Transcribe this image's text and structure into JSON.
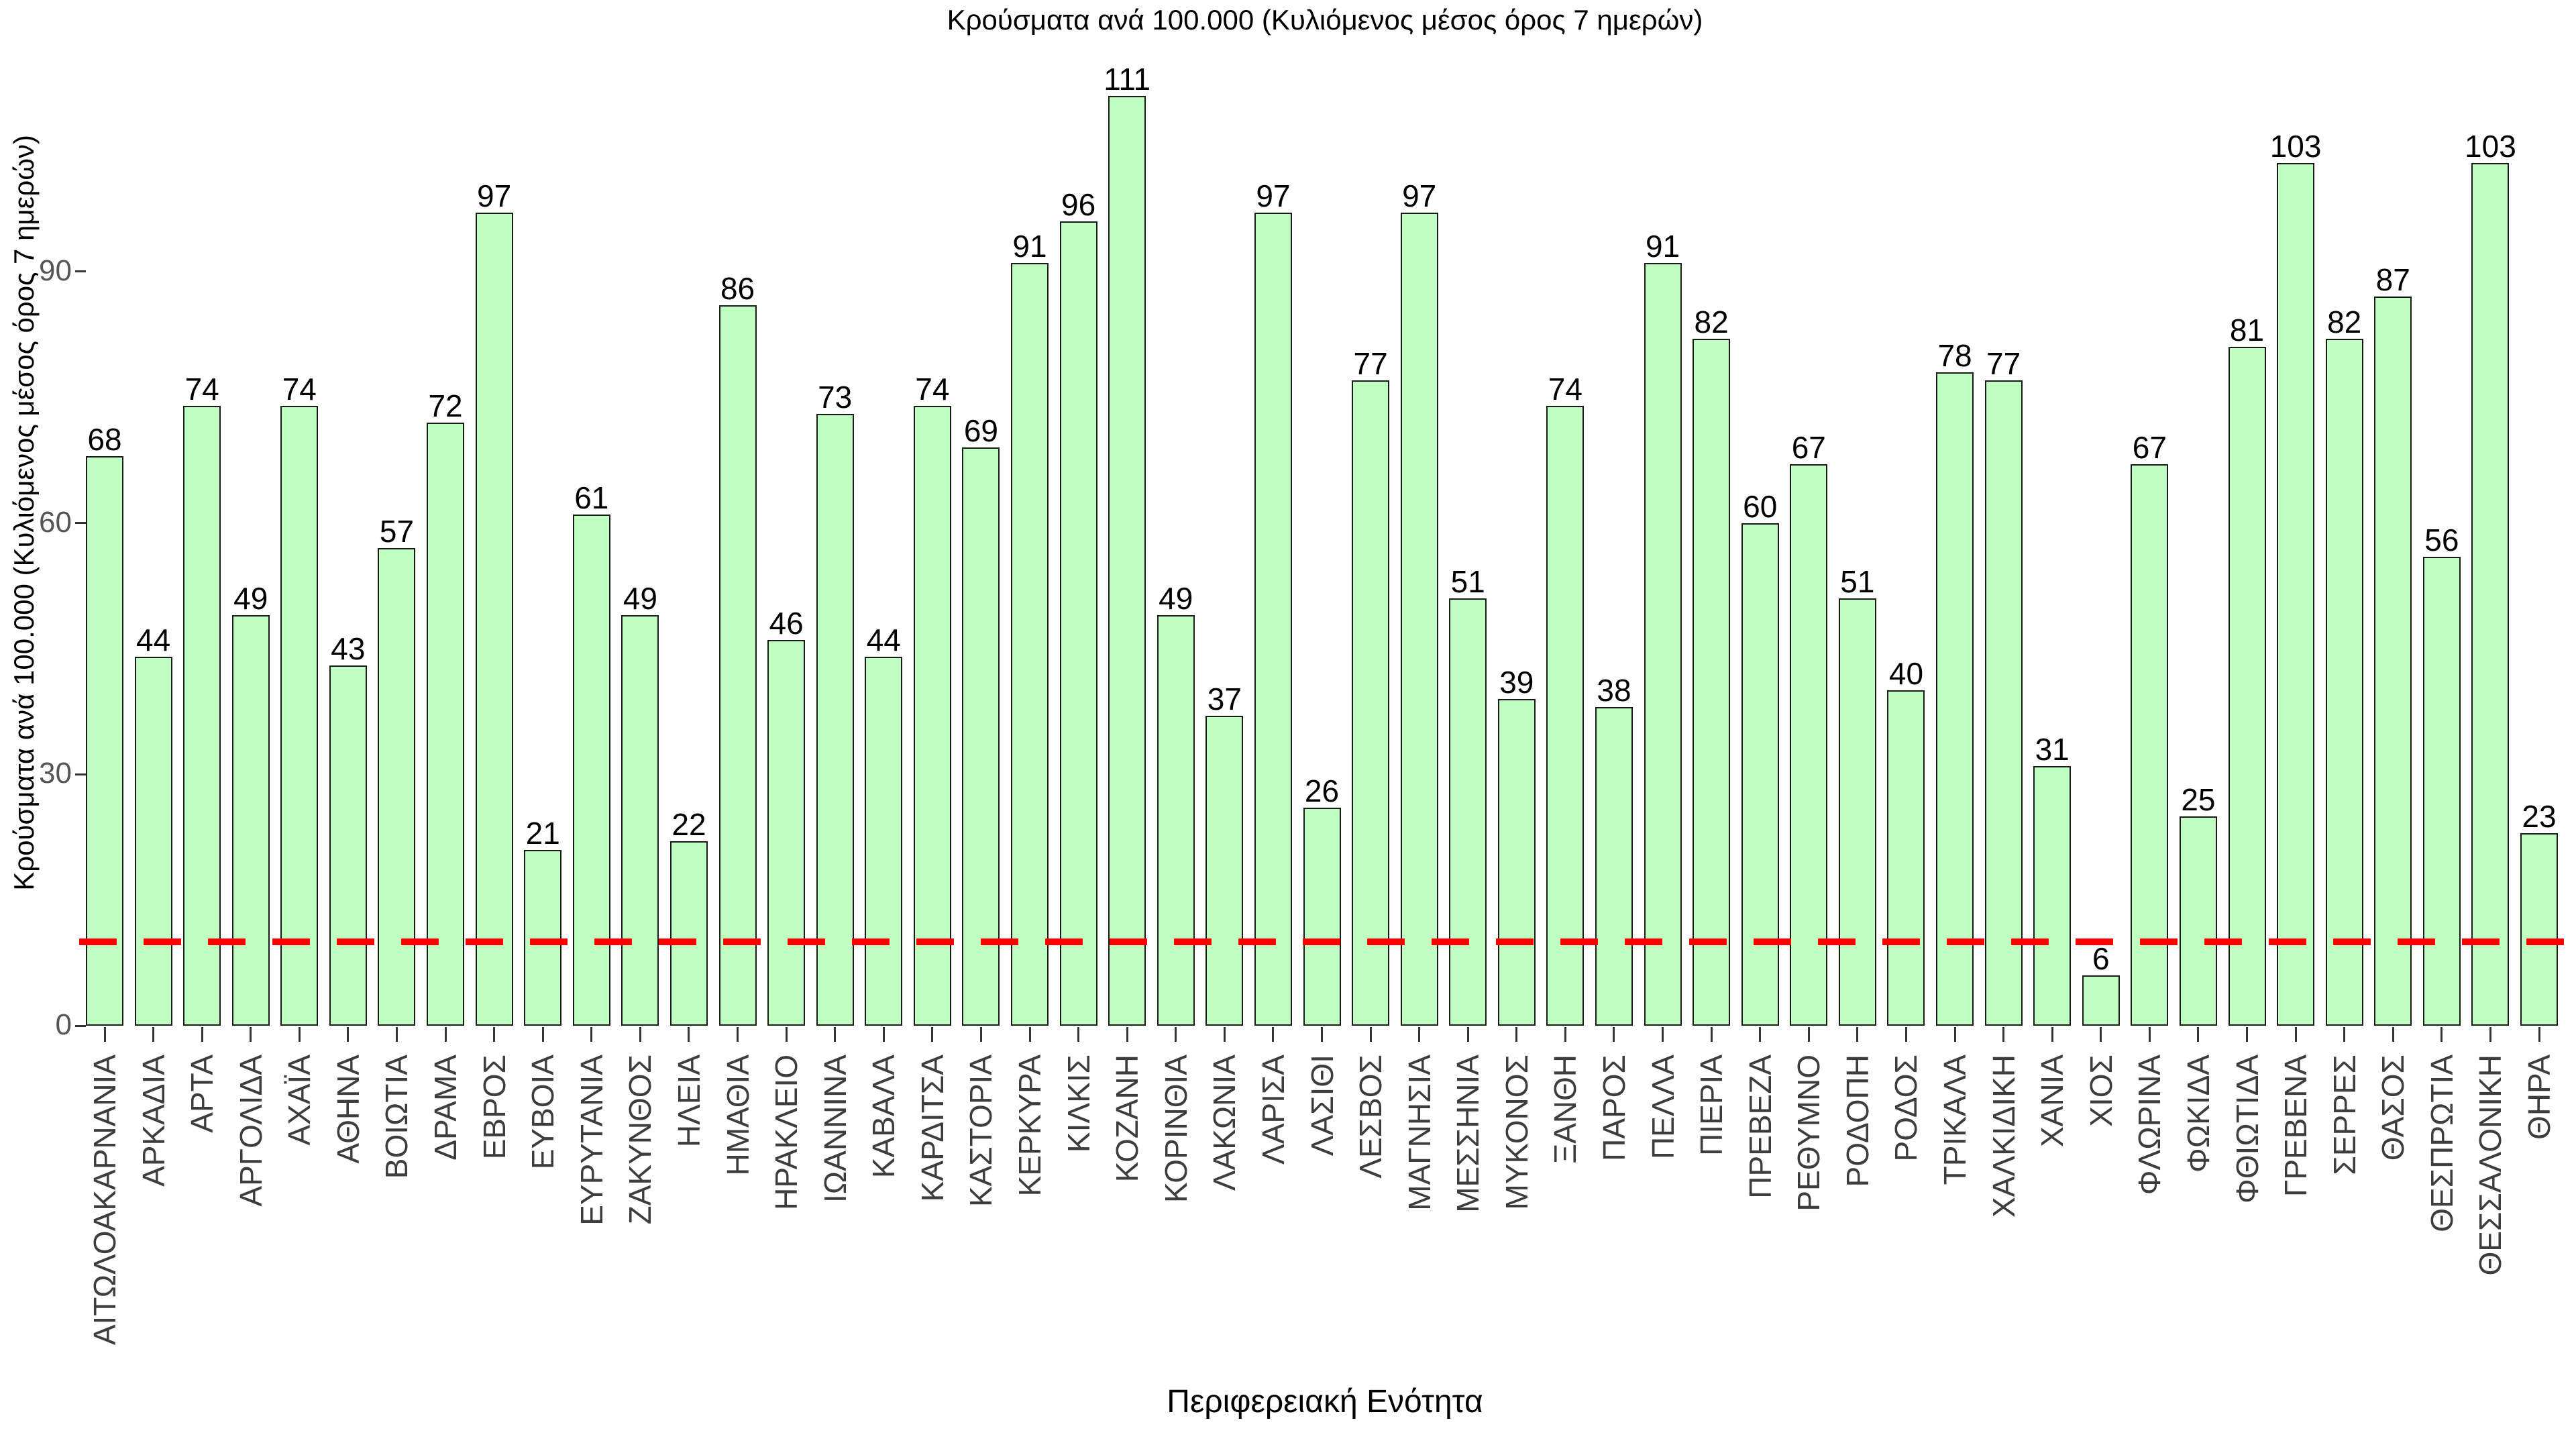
{
  "chart_data": {
    "type": "bar",
    "title": "Κρούσματα ανά 100.000 (Κυλιόμενος μέσος όρος 7 ημερών)",
    "xlabel": "Περιφερειακή Ενότητα",
    "ylabel": "Κρούσματα ανά 100.000 (Κυλιόμενος μέσος όρος 7 ημερών)",
    "categories": [
      "ΑΙΤΩΛΟΑΚΑΡΝΑΝΙΑ",
      "ΑΡΚΑΔΙΑ",
      "ΑΡΤΑ",
      "ΑΡΓΟΛΙΔΑ",
      "ΑΧΑΪΑ",
      "ΑΘΗΝΑ",
      "ΒΟΙΩΤΙΑ",
      "ΔΡΑΜΑ",
      "ΕΒΡΟΣ",
      "ΕΥΒΟΙΑ",
      "ΕΥΡΥΤΑΝΙΑ",
      "ΖΑΚΥΝΘΟΣ",
      "ΗΛΕΙΑ",
      "ΗΜΑΘΙΑ",
      "ΗΡΑΚΛΕΙΟ",
      "ΙΩΑΝΝΙΝΑ",
      "ΚΑΒΑΛΑ",
      "ΚΑΡΔΙΤΣΑ",
      "ΚΑΣΤΟΡΙΑ",
      "ΚΕΡΚΥΡΑ",
      "ΚΙΛΚΙΣ",
      "ΚΟΖΑΝΗ",
      "ΚΟΡΙΝΘΙΑ",
      "ΛΑΚΩΝΙΑ",
      "ΛΑΡΙΣΑ",
      "ΛΑΣΙΘΙ",
      "ΛΕΣΒΟΣ",
      "ΜΑΓΝΗΣΙΑ",
      "ΜΕΣΣΗΝΙΑ",
      "ΜΥΚΟΝΟΣ",
      "ΞΑΝΘΗ",
      "ΠΑΡΟΣ",
      "ΠΕΛΛΑ",
      "ΠΙΕΡΙΑ",
      "ΠΡΕΒΕΖΑ",
      "ΡΕΘΥΜΝΟ",
      "ΡΟΔΟΠΗ",
      "ΡΟΔΟΣ",
      "ΤΡΙΚΑΛΑ",
      "ΧΑΛΚΙΔΙΚΗ",
      "ΧΑΝΙΑ",
      "ΧΙΟΣ",
      "ΦΛΩΡΙΝΑ",
      "ΦΩΚΙΔΑ",
      "ΦΘΙΩΤΙΔΑ",
      "ΓΡΕΒΕΝΑ",
      "ΣΕΡΡΕΣ",
      "ΘΑΣΟΣ",
      "ΘΕΣΠΡΩΤΙΑ",
      "ΘΕΣΣΑΛΟΝΙΚΗ",
      "ΘΗΡΑ"
    ],
    "values": [
      68,
      44,
      74,
      49,
      74,
      43,
      57,
      72,
      97,
      21,
      61,
      49,
      22,
      86,
      46,
      73,
      44,
      74,
      69,
      91,
      96,
      111,
      49,
      37,
      97,
      26,
      77,
      97,
      51,
      39,
      74,
      38,
      91,
      82,
      60,
      67,
      51,
      40,
      78,
      77,
      31,
      6,
      67,
      25,
      81,
      103,
      82,
      87,
      56,
      103,
      23
    ],
    "value_labels": true,
    "yticks": [
      0,
      30,
      60,
      90
    ],
    "ylim": [
      0,
      118
    ],
    "grid": false,
    "legend": null,
    "reference_line": {
      "value": 10,
      "style": "dashed",
      "color": "#ff0000"
    },
    "bar_fill_color": "#c2ffc2",
    "bar_edge_color": "#1a1a1a",
    "tick_label_color": "#555555",
    "category_label_color": "#3d3d3d"
  }
}
